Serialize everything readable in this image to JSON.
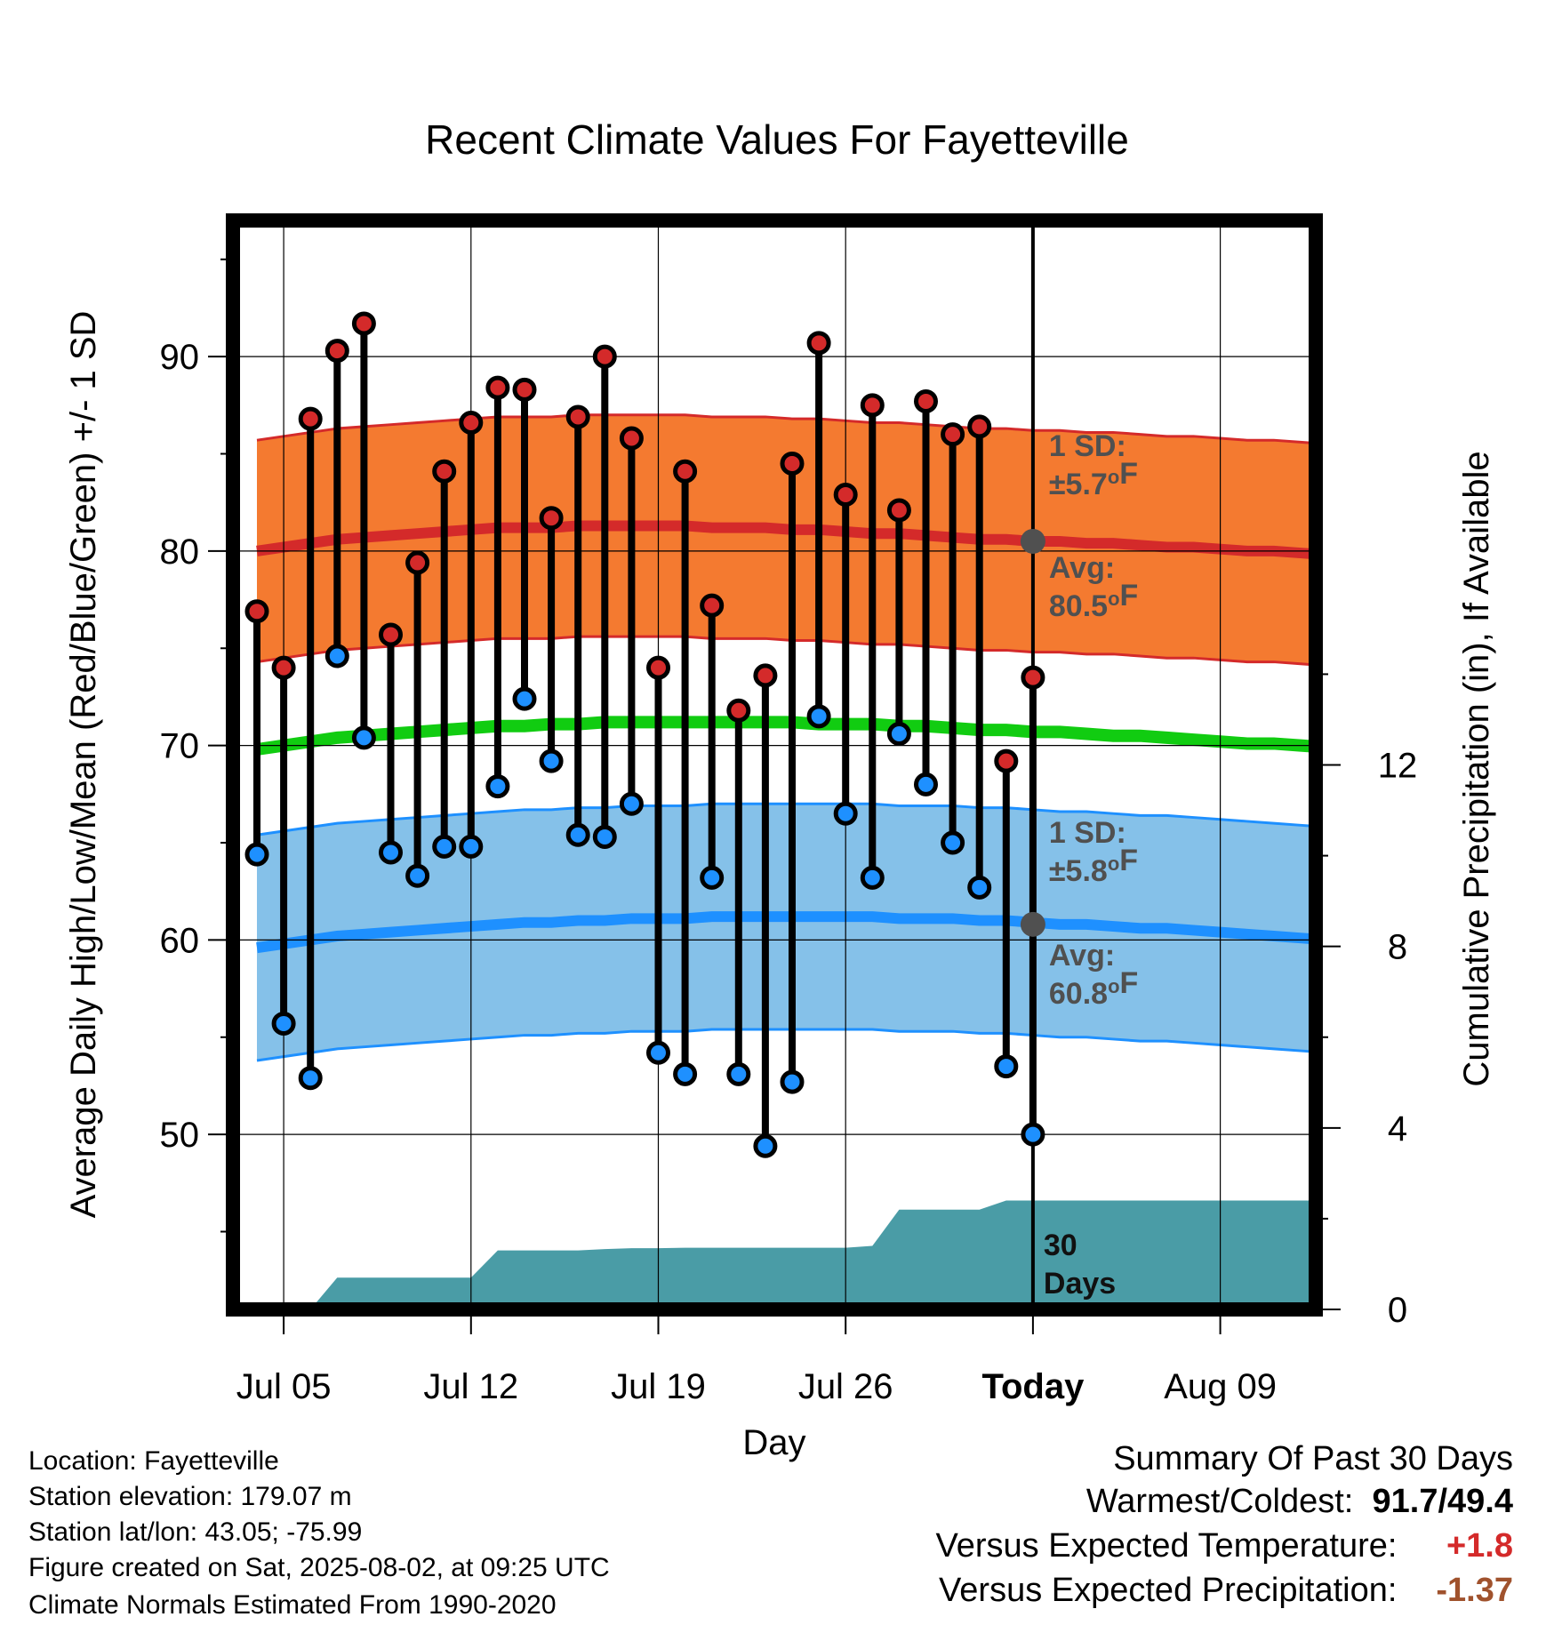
{
  "title": "Recent Climate Values For Fayetteville",
  "footer": {
    "location": "Location: Fayetteville",
    "elevation": "Station elevation: 179.07 m",
    "latlon": "Station lat/lon: 43.05; -75.99",
    "created": "Figure created on Sat, 2025-08-02, at 09:25 UTC",
    "normals": "Climate Normals Estimated From 1990-2020"
  },
  "summary": {
    "heading": "Summary Of Past 30 Days",
    "warmest_coldest_label": "Warmest/Coldest:",
    "warmest": "91.7",
    "coldest": "49.4",
    "temp_label": "Versus Expected Temperature:",
    "temp_value": "+1.8",
    "precip_label": "Versus Expected Precipitation:",
    "precip_value": "-1.37"
  },
  "colors": {
    "high_marker": "#d42a2a",
    "low_marker": "#1e90ff",
    "high_band": "#f47a30",
    "high_band_edge": "#d42a2a",
    "low_band": "#85c1e9",
    "low_band_edge": "#1e90ff",
    "mean_line": "#11cc11",
    "precip_fill": "#4a9ca6",
    "annotation": "#505050",
    "positive_anomaly": "#d42a2a",
    "negative_anomaly": "#a0522d"
  },
  "chart_data": {
    "type": "range-line",
    "xlabel": "Day",
    "ylabel": "Average Daily High/Low/Mean (Red/Blue/Green) +/- 1 SD",
    "y2label": "Cumulative Precipitation (in), If Available",
    "x_ticks": [
      "Jul 05",
      "Jul 12",
      "Jul 19",
      "Jul 26",
      "Today",
      "Aug 09"
    ],
    "y_ticks": [
      50,
      60,
      70,
      80,
      90
    ],
    "y2_ticks": [
      0,
      4,
      8,
      12
    ],
    "ylim": [
      41,
      97
    ],
    "y2lim": [
      0,
      24
    ],
    "grid": true,
    "dates": [
      "Jul 04",
      "Jul 05",
      "Jul 06",
      "Jul 07",
      "Jul 08",
      "Jul 09",
      "Jul 10",
      "Jul 11",
      "Jul 12",
      "Jul 13",
      "Jul 14",
      "Jul 15",
      "Jul 16",
      "Jul 17",
      "Jul 18",
      "Jul 19",
      "Jul 20",
      "Jul 21",
      "Jul 22",
      "Jul 23",
      "Jul 24",
      "Jul 25",
      "Jul 26",
      "Jul 27",
      "Jul 28",
      "Jul 29",
      "Jul 30",
      "Jul 31",
      "Aug 01",
      "Aug 02",
      "Aug 03",
      "Aug 04",
      "Aug 05",
      "Aug 06",
      "Aug 07",
      "Aug 08",
      "Aug 09",
      "Aug 10",
      "Aug 11",
      "Aug 12",
      "Aug 13"
    ],
    "highs": [
      76.9,
      74.0,
      86.8,
      90.3,
      91.7,
      75.7,
      79.4,
      84.1,
      86.6,
      88.4,
      88.3,
      81.7,
      86.9,
      90.0,
      85.8,
      74.0,
      84.1,
      77.2,
      71.8,
      73.6,
      84.5,
      90.7,
      82.9,
      87.5,
      82.1,
      87.7,
      86.0,
      86.4,
      69.2,
      73.5
    ],
    "lows": [
      64.4,
      55.7,
      52.9,
      74.6,
      70.4,
      64.5,
      63.3,
      64.8,
      64.8,
      67.9,
      72.4,
      69.2,
      65.4,
      65.3,
      67.0,
      54.2,
      53.1,
      63.2,
      53.1,
      49.4,
      52.7,
      71.5,
      66.5,
      63.2,
      70.6,
      68.0,
      65.0,
      62.7,
      53.5,
      50.0
    ],
    "normal_high": [
      80.0,
      80.2,
      80.4,
      80.6,
      80.7,
      80.8,
      80.9,
      81.0,
      81.1,
      81.2,
      81.2,
      81.2,
      81.3,
      81.3,
      81.3,
      81.3,
      81.3,
      81.2,
      81.2,
      81.2,
      81.1,
      81.1,
      81.0,
      80.9,
      80.9,
      80.8,
      80.7,
      80.6,
      80.6,
      80.5,
      80.5,
      80.4,
      80.4,
      80.3,
      80.2,
      80.2,
      80.1,
      80.0,
      80.0,
      79.9,
      79.8
    ],
    "normal_low": [
      59.6,
      59.8,
      60.0,
      60.2,
      60.3,
      60.4,
      60.5,
      60.6,
      60.7,
      60.8,
      60.9,
      60.9,
      61.0,
      61.0,
      61.1,
      61.1,
      61.1,
      61.2,
      61.2,
      61.2,
      61.2,
      61.2,
      61.2,
      61.2,
      61.1,
      61.1,
      61.1,
      61.0,
      61.0,
      60.9,
      60.8,
      60.8,
      60.7,
      60.6,
      60.6,
      60.5,
      60.4,
      60.3,
      60.2,
      60.1,
      60.0
    ],
    "normal_mean": [
      69.8,
      70.0,
      70.2,
      70.4,
      70.5,
      70.6,
      70.7,
      70.8,
      70.9,
      71.0,
      71.0,
      71.1,
      71.1,
      71.2,
      71.2,
      71.2,
      71.2,
      71.2,
      71.2,
      71.2,
      71.2,
      71.1,
      71.1,
      71.1,
      71.0,
      71.0,
      70.9,
      70.8,
      70.8,
      70.7,
      70.7,
      70.6,
      70.5,
      70.5,
      70.4,
      70.3,
      70.2,
      70.1,
      70.1,
      70.0,
      69.9
    ],
    "sd_high": 5.7,
    "sd_low": 5.8,
    "cumulative_precip": [
      0.0,
      0.0,
      0.0,
      0.7,
      0.7,
      0.7,
      0.7,
      0.7,
      0.7,
      1.3,
      1.3,
      1.3,
      1.3,
      1.33,
      1.35,
      1.35,
      1.36,
      1.36,
      1.36,
      1.36,
      1.36,
      1.36,
      1.36,
      1.4,
      2.2,
      2.2,
      2.2,
      2.2,
      2.4,
      2.4,
      2.4,
      2.4,
      2.4,
      2.4,
      2.4,
      2.4,
      2.4,
      2.4,
      2.4,
      2.4,
      2.4
    ],
    "annotations": {
      "high_sd": "1 SD:",
      "high_sd_value": "±5.7",
      "high_avg": "Avg:",
      "high_avg_value": "80.5",
      "low_sd": "1 SD:",
      "low_sd_value": "±5.8",
      "low_avg": "Avg:",
      "low_avg_value": "60.8",
      "unit": "F",
      "degree": "o",
      "period_line1": "30",
      "period_line2": "Days"
    }
  }
}
